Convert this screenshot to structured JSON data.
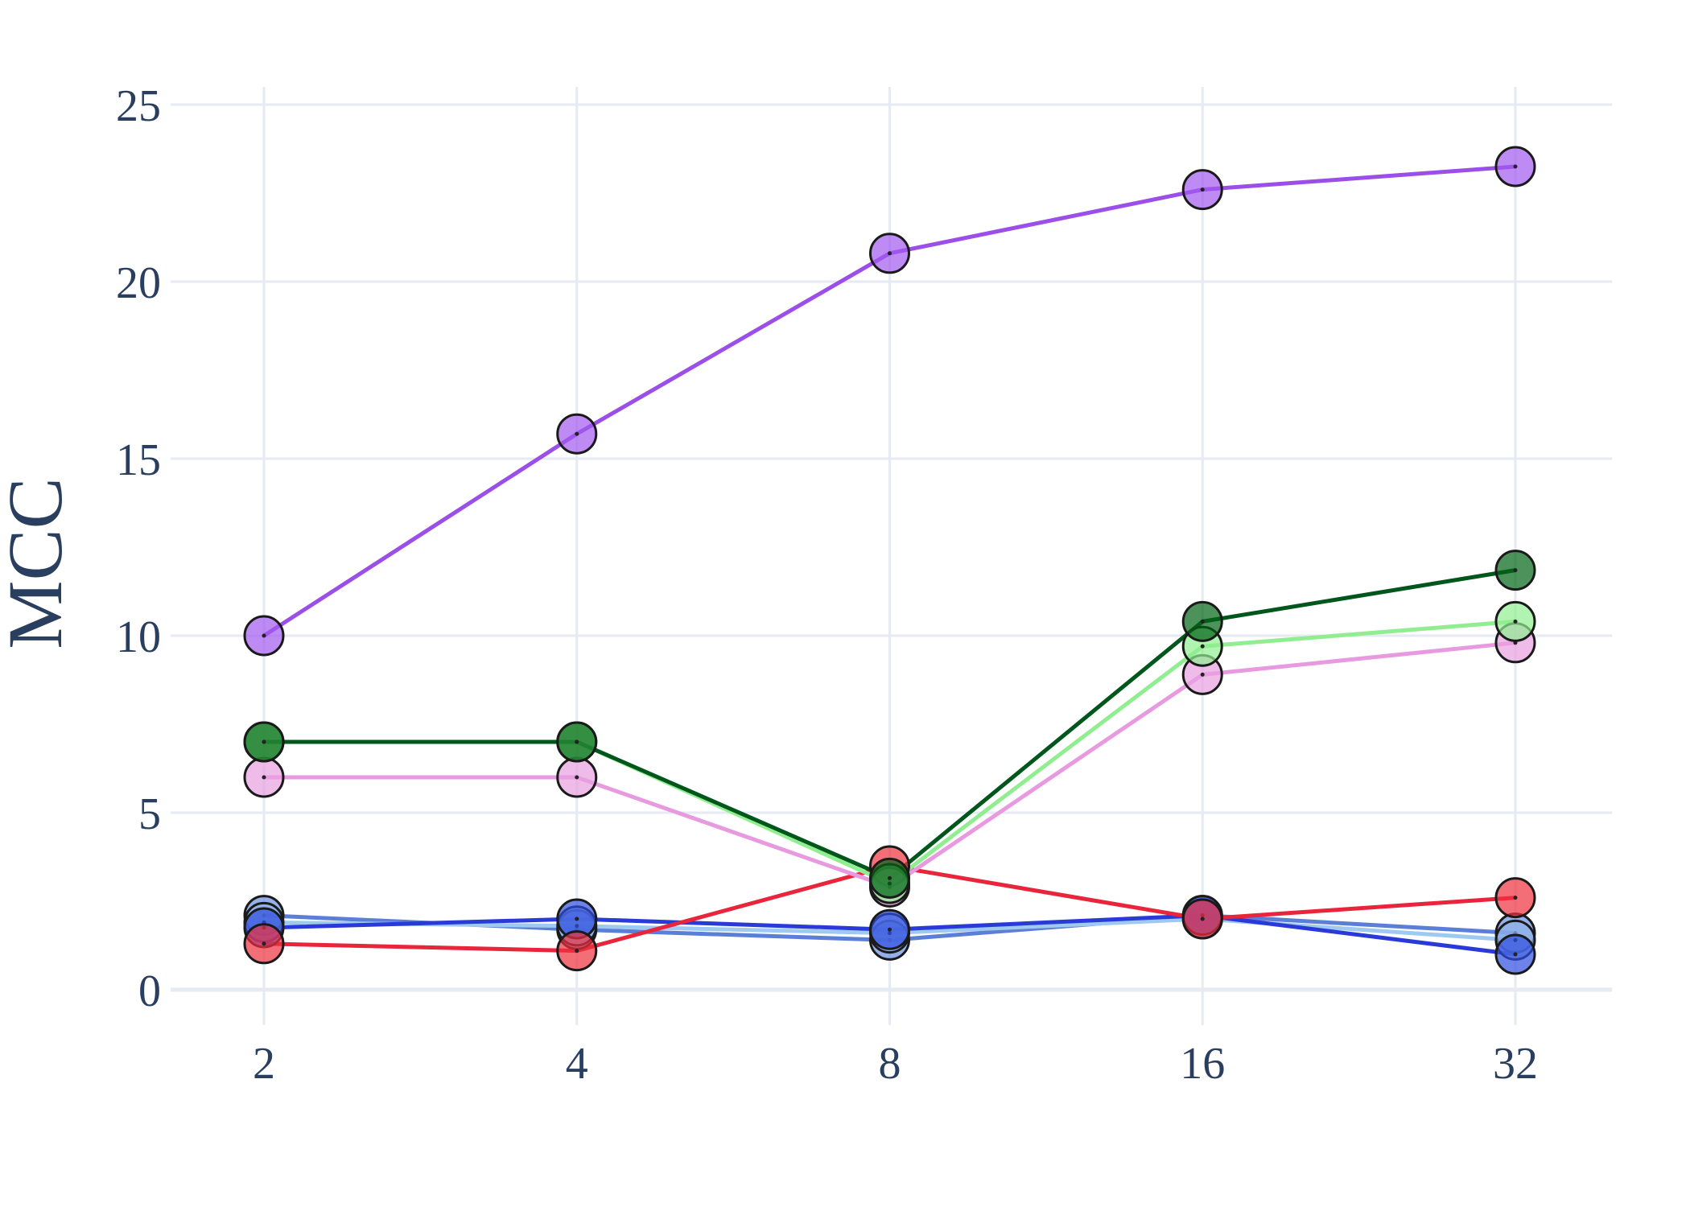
{
  "chart_data": {
    "type": "line",
    "title": "",
    "xlabel": "",
    "ylabel": "MCC",
    "x_scale": "log2",
    "x": [
      2,
      4,
      8,
      16,
      32
    ],
    "x_tick_labels": [
      "2",
      "4",
      "8",
      "16",
      "32"
    ],
    "ylim": [
      -1,
      25.5
    ],
    "y_ticks": [
      0,
      5,
      10,
      15,
      20,
      25
    ],
    "grid": true,
    "legend": "none",
    "series": [
      {
        "color": "#5b7fd8",
        "marker_color": "#6a8ee0",
        "values": [
          2.1,
          1.7,
          1.4,
          2.1,
          1.6
        ]
      },
      {
        "color": "#9ec9f0",
        "marker_color": "#8fb2e8",
        "values": [
          1.9,
          1.8,
          1.6,
          2.0,
          1.4
        ]
      },
      {
        "color": "#2a3ad8",
        "marker_color": "#2f4fe0",
        "values": [
          1.75,
          2.0,
          1.7,
          2.1,
          1.0
        ]
      },
      {
        "color": "#e8253a",
        "marker_color": "#f0303f",
        "values": [
          1.3,
          1.1,
          3.5,
          2.0,
          2.6
        ]
      },
      {
        "color": "#e89ae0",
        "marker_color": "#e8a0e0",
        "values": [
          6.0,
          6.0,
          2.9,
          8.9,
          9.8
        ]
      },
      {
        "color": "#90ee90",
        "marker_color": "#90ee90",
        "values": [
          7.0,
          7.0,
          3.0,
          9.7,
          10.4
        ]
      },
      {
        "color": "#00561b",
        "marker_color": "#006414",
        "values": [
          7.0,
          7.0,
          3.15,
          10.4,
          11.85
        ]
      },
      {
        "color": "#9b4ee8",
        "marker_color": "#a35af0",
        "values": [
          10.0,
          15.7,
          20.8,
          22.6,
          23.25
        ]
      }
    ]
  }
}
